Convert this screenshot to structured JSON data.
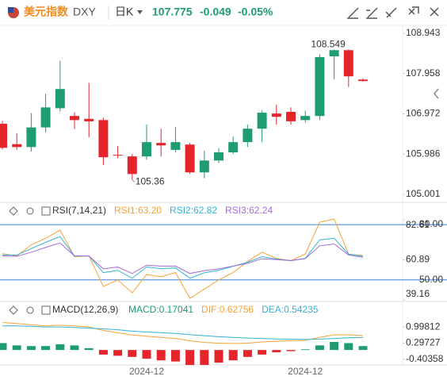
{
  "header": {
    "name": "美元指数",
    "symbol": "DXY",
    "period": "日K",
    "price": "107.775",
    "change": "-0.049",
    "change_pct": "-0.05%"
  },
  "chart_data": [
    {
      "type": "candlestick",
      "categories": [
        null,
        null,
        null,
        null,
        null,
        null,
        null,
        null,
        null,
        null,
        "2024-12",
        null,
        null,
        null,
        null,
        null,
        null,
        null,
        null,
        null,
        null,
        "2024-12",
        null,
        null,
        null,
        null
      ],
      "open": [
        106.73,
        106.23,
        106.16,
        106.64,
        107.11,
        106.92,
        106.85,
        106.82,
        105.97,
        105.93,
        105.93,
        106.26,
        106.09,
        106.22,
        105.54,
        105.83,
        106.03,
        106.28,
        106.61,
        106.98,
        107.02,
        106.82,
        106.92,
        108.38,
        108.53,
        107.81
      ],
      "high": [
        106.8,
        106.5,
        106.99,
        107.46,
        108.27,
        107.01,
        107.73,
        106.88,
        106.18,
        105.99,
        106.71,
        106.61,
        106.65,
        106.26,
        106.07,
        106.13,
        106.42,
        106.71,
        107.05,
        107.19,
        107.13,
        107.05,
        108.43,
        108.54,
        108.549,
        107.84
      ],
      "low": [
        106.1,
        106.09,
        106.05,
        106.52,
        107.03,
        106.6,
        106.4,
        105.72,
        105.89,
        105.36,
        105.85,
        105.93,
        106.03,
        105.5,
        105.395,
        105.77,
        105.99,
        106.16,
        106.28,
        106.71,
        106.71,
        106.76,
        106.82,
        107.82,
        107.63,
        107.76
      ],
      "close": [
        106.14,
        106.16,
        106.64,
        107.13,
        107.58,
        106.82,
        106.79,
        105.91,
        105.95,
        105.5,
        106.28,
        106.2,
        106.28,
        105.54,
        105.83,
        106.03,
        106.28,
        106.61,
        107.0,
        106.9,
        106.79,
        106.92,
        108.36,
        108.53,
        107.89,
        107.775
      ],
      "up_color": "#1f9d70",
      "down_color": "#e5242b",
      "ylim": [
        104.807,
        109.137
      ],
      "yticks": [
        108.943,
        107.958,
        106.972,
        105.986,
        105.001
      ]
    },
    {
      "type": "line",
      "title": "RSI(7,14,21)",
      "series": [
        {
          "name": "RSI1:63.20",
          "color": "#f5a236",
          "values": [
            64.3,
            63,
            69,
            72.6,
            77,
            62.6,
            63,
            46.5,
            50,
            43,
            53,
            51.7,
            54,
            40,
            45,
            50,
            54,
            60,
            65,
            61.7,
            60.4,
            64,
            81.3,
            83,
            64,
            63.2
          ]
        },
        {
          "name": "RSI2:62.82",
          "color": "#33b4d4",
          "values": [
            63.5,
            63.5,
            67,
            70.4,
            73.5,
            63,
            63,
            53.9,
            55.2,
            50.9,
            57,
            56.1,
            56.5,
            50.9,
            53.9,
            55.2,
            57.4,
            59.6,
            62.6,
            61.3,
            60.4,
            61.7,
            71.7,
            72.6,
            64,
            62.82
          ]
        },
        {
          "name": "RSI3:62.24",
          "color": "#a26ad8",
          "values": [
            63,
            62.8,
            65,
            67.6,
            70,
            63,
            63,
            56,
            57,
            53.5,
            58,
            57.5,
            57.5,
            53.5,
            55,
            56,
            57.5,
            59,
            61.5,
            61,
            60.5,
            61.5,
            68.5,
            69.5,
            63.5,
            62.24
          ]
        }
      ],
      "ref_lines": [
        {
          "value": 80,
          "label": "80.00"
        },
        {
          "value": 50,
          "label": "50.00"
        }
      ],
      "ref_color": "#3d7fd6",
      "ylim": [
        39.16,
        82.61
      ],
      "yticks": [
        82.61,
        60.89,
        39.16
      ]
    },
    {
      "type": "macd",
      "title": "MACD(12,26,9)",
      "series": [
        {
          "name": "MACD:0.17041",
          "color": "#1f9d70",
          "down_color": "#e5242b",
          "values": [
            0.3,
            0.2,
            0.17,
            0.17,
            0.25,
            0.2,
            0.08,
            -0.2,
            -0.25,
            -0.3,
            -0.38,
            -0.45,
            -0.5,
            -0.65,
            -0.65,
            -0.55,
            -0.45,
            -0.3,
            -0.2,
            -0.1,
            -0.05,
            0.03,
            0.2,
            0.35,
            0.3,
            0.17041
          ]
        },
        {
          "name": "DIF:0.62756",
          "color": "#f5a236",
          "values": [
            1.2,
            1.15,
            1.1,
            1.05,
            1.08,
            1.05,
            1.0,
            0.85,
            0.75,
            0.65,
            0.6,
            0.55,
            0.5,
            0.4,
            0.33,
            0.3,
            0.28,
            0.3,
            0.35,
            0.38,
            0.4,
            0.42,
            0.55,
            0.66,
            0.66,
            0.62756
          ]
        },
        {
          "name": "DEA:0.54235",
          "color": "#33b4d4",
          "values": [
            1.05,
            1.05,
            1.03,
            1.0,
            1.0,
            0.98,
            0.95,
            0.92,
            0.88,
            0.82,
            0.78,
            0.75,
            0.72,
            0.67,
            0.62,
            0.58,
            0.55,
            0.52,
            0.5,
            0.48,
            0.47,
            0.46,
            0.47,
            0.5,
            0.53,
            0.54235
          ]
        }
      ],
      "ylim": [
        -0.72,
        1.42
      ],
      "yticks": [
        0.99812,
        0.29727,
        -0.40358
      ]
    }
  ]
}
